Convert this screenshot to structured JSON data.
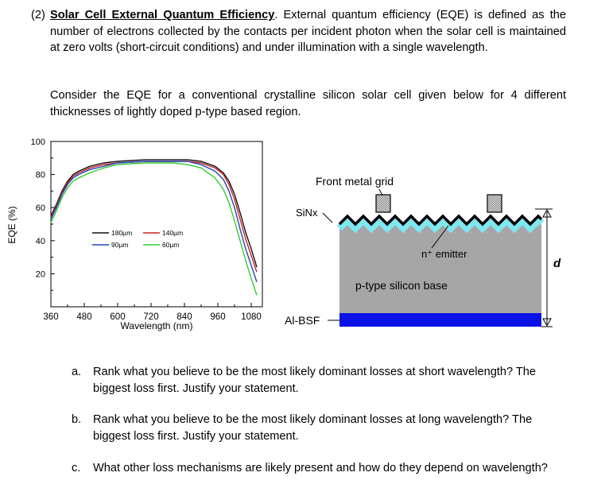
{
  "problem": {
    "number": "(2)",
    "title": "Solar Cell External Quantum Efficiency",
    "intro": ". External quantum efficiency (EQE) is defined as the number of electrons collected by the contacts per incident photon when the solar cell is maintained at zero volts (short-circuit conditions) and under illumination with a single wavelength.",
    "consider": "Consider the EQE for a conventional crystalline silicon solar cell given below for 4 different thicknesses of lightly doped p-type based region."
  },
  "chart_data": {
    "type": "line",
    "xlabel": "Wavelength (nm)",
    "ylabel": "EQE (%)",
    "xlim": [
      360,
      1120
    ],
    "ylim": [
      0,
      100
    ],
    "xticks": [
      "360",
      "480",
      "600",
      "720",
      "840",
      "960",
      "1080"
    ],
    "yticks": [
      "100",
      "80",
      "60",
      "40",
      "20"
    ],
    "legend_position": "center-left",
    "series": [
      {
        "name": "180µm",
        "color": "#111111",
        "x": [
          360,
          380,
          400,
          420,
          440,
          460,
          500,
          550,
          600,
          700,
          800,
          850,
          900,
          950,
          980,
          1000,
          1020,
          1040,
          1060,
          1080,
          1100
        ],
        "y": [
          55,
          62,
          70,
          76,
          80,
          82,
          85,
          87,
          88,
          89,
          89,
          89,
          88,
          85,
          81,
          76,
          68,
          57,
          45,
          35,
          24
        ]
      },
      {
        "name": "140µm",
        "color": "#cc2222",
        "x": [
          360,
          380,
          400,
          420,
          440,
          460,
          500,
          550,
          600,
          700,
          800,
          850,
          900,
          950,
          980,
          1000,
          1020,
          1040,
          1060,
          1080,
          1100
        ],
        "y": [
          54,
          61,
          69,
          75,
          79,
          81,
          84,
          86,
          87,
          88,
          88,
          88,
          87,
          84,
          80,
          74,
          65,
          53,
          41,
          31,
          21
        ]
      },
      {
        "name": "90µm",
        "color": "#2244bb",
        "x": [
          360,
          380,
          400,
          420,
          440,
          460,
          500,
          550,
          600,
          700,
          800,
          850,
          900,
          950,
          980,
          1000,
          1020,
          1040,
          1060,
          1080,
          1100
        ],
        "y": [
          53,
          60,
          68,
          74,
          78,
          80,
          83,
          85,
          87,
          88,
          88,
          88,
          86,
          82,
          77,
          70,
          60,
          47,
          35,
          25,
          15
        ]
      },
      {
        "name": "60µm",
        "color": "#33cc33",
        "x": [
          360,
          380,
          400,
          420,
          440,
          460,
          500,
          550,
          600,
          700,
          800,
          850,
          900,
          950,
          980,
          1000,
          1020,
          1040,
          1060,
          1080,
          1100
        ],
        "y": [
          51,
          58,
          66,
          72,
          76,
          78,
          81,
          84,
          86,
          87,
          87,
          86,
          84,
          78,
          71,
          63,
          52,
          40,
          28,
          17,
          7
        ]
      }
    ]
  },
  "diagram": {
    "front_grid_label": "Front metal grid",
    "sinx_label": "SiNx",
    "emitter_label": "n⁺ emitter",
    "base_label": "p-type silicon base",
    "bsf_label": "Al-BSF",
    "thickness_label": "d",
    "colors": {
      "base": "#a6a6a6",
      "arc": "#7ee8f0",
      "bsf": "#0a12e6",
      "grid": "#c8c8c8"
    }
  },
  "questions": [
    {
      "label": "a.",
      "text": "Rank what you believe to be the most likely dominant losses at short wavelength? The biggest loss first. Justify your statement."
    },
    {
      "label": "b.",
      "text": "Rank what you believe to be the most likely dominant losses at long wavelength? The biggest loss first. Justify your statement."
    },
    {
      "label": "c.",
      "text": "What other loss mechanisms are likely present and how do they depend on wavelength?"
    }
  ]
}
